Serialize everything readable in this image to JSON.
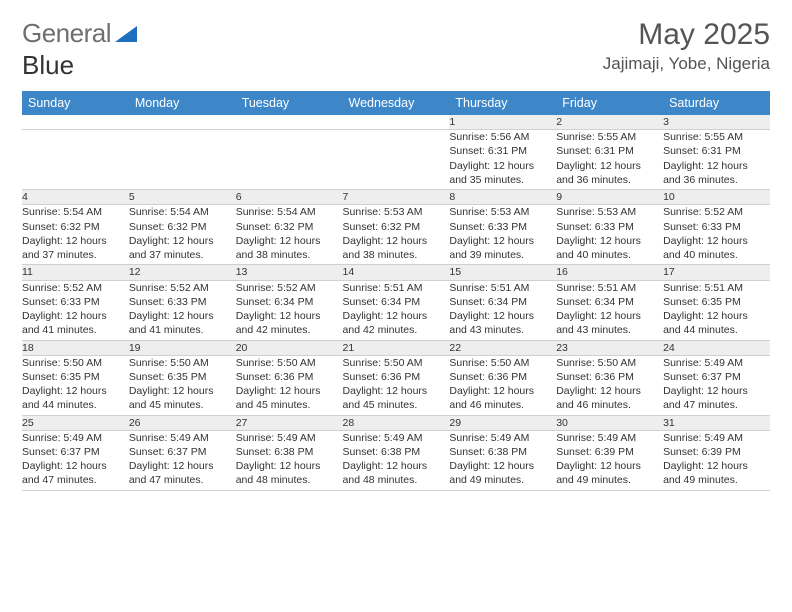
{
  "brand": {
    "part1": "General",
    "part2": "Blue"
  },
  "header": {
    "month_title": "May 2025",
    "location": "Jajimaji, Yobe, Nigeria"
  },
  "colors": {
    "header_bg": "#3d87c9",
    "daynum_bg": "#eeeeee",
    "text": "#333333",
    "brand_gray": "#6f6f6f",
    "brand_blue": "#1f6fbf"
  },
  "weekdays": [
    "Sunday",
    "Monday",
    "Tuesday",
    "Wednesday",
    "Thursday",
    "Friday",
    "Saturday"
  ],
  "weeks": [
    {
      "nums": [
        "",
        "",
        "",
        "",
        "1",
        "2",
        "3"
      ],
      "cells": [
        null,
        null,
        null,
        null,
        {
          "sunrise": "5:56 AM",
          "sunset": "6:31 PM",
          "dl1": "Daylight: 12 hours",
          "dl2": "and 35 minutes."
        },
        {
          "sunrise": "5:55 AM",
          "sunset": "6:31 PM",
          "dl1": "Daylight: 12 hours",
          "dl2": "and 36 minutes."
        },
        {
          "sunrise": "5:55 AM",
          "sunset": "6:31 PM",
          "dl1": "Daylight: 12 hours",
          "dl2": "and 36 minutes."
        }
      ]
    },
    {
      "nums": [
        "4",
        "5",
        "6",
        "7",
        "8",
        "9",
        "10"
      ],
      "cells": [
        {
          "sunrise": "5:54 AM",
          "sunset": "6:32 PM",
          "dl1": "Daylight: 12 hours",
          "dl2": "and 37 minutes."
        },
        {
          "sunrise": "5:54 AM",
          "sunset": "6:32 PM",
          "dl1": "Daylight: 12 hours",
          "dl2": "and 37 minutes."
        },
        {
          "sunrise": "5:54 AM",
          "sunset": "6:32 PM",
          "dl1": "Daylight: 12 hours",
          "dl2": "and 38 minutes."
        },
        {
          "sunrise": "5:53 AM",
          "sunset": "6:32 PM",
          "dl1": "Daylight: 12 hours",
          "dl2": "and 38 minutes."
        },
        {
          "sunrise": "5:53 AM",
          "sunset": "6:33 PM",
          "dl1": "Daylight: 12 hours",
          "dl2": "and 39 minutes."
        },
        {
          "sunrise": "5:53 AM",
          "sunset": "6:33 PM",
          "dl1": "Daylight: 12 hours",
          "dl2": "and 40 minutes."
        },
        {
          "sunrise": "5:52 AM",
          "sunset": "6:33 PM",
          "dl1": "Daylight: 12 hours",
          "dl2": "and 40 minutes."
        }
      ]
    },
    {
      "nums": [
        "11",
        "12",
        "13",
        "14",
        "15",
        "16",
        "17"
      ],
      "cells": [
        {
          "sunrise": "5:52 AM",
          "sunset": "6:33 PM",
          "dl1": "Daylight: 12 hours",
          "dl2": "and 41 minutes."
        },
        {
          "sunrise": "5:52 AM",
          "sunset": "6:33 PM",
          "dl1": "Daylight: 12 hours",
          "dl2": "and 41 minutes."
        },
        {
          "sunrise": "5:52 AM",
          "sunset": "6:34 PM",
          "dl1": "Daylight: 12 hours",
          "dl2": "and 42 minutes."
        },
        {
          "sunrise": "5:51 AM",
          "sunset": "6:34 PM",
          "dl1": "Daylight: 12 hours",
          "dl2": "and 42 minutes."
        },
        {
          "sunrise": "5:51 AM",
          "sunset": "6:34 PM",
          "dl1": "Daylight: 12 hours",
          "dl2": "and 43 minutes."
        },
        {
          "sunrise": "5:51 AM",
          "sunset": "6:34 PM",
          "dl1": "Daylight: 12 hours",
          "dl2": "and 43 minutes."
        },
        {
          "sunrise": "5:51 AM",
          "sunset": "6:35 PM",
          "dl1": "Daylight: 12 hours",
          "dl2": "and 44 minutes."
        }
      ]
    },
    {
      "nums": [
        "18",
        "19",
        "20",
        "21",
        "22",
        "23",
        "24"
      ],
      "cells": [
        {
          "sunrise": "5:50 AM",
          "sunset": "6:35 PM",
          "dl1": "Daylight: 12 hours",
          "dl2": "and 44 minutes."
        },
        {
          "sunrise": "5:50 AM",
          "sunset": "6:35 PM",
          "dl1": "Daylight: 12 hours",
          "dl2": "and 45 minutes."
        },
        {
          "sunrise": "5:50 AM",
          "sunset": "6:36 PM",
          "dl1": "Daylight: 12 hours",
          "dl2": "and 45 minutes."
        },
        {
          "sunrise": "5:50 AM",
          "sunset": "6:36 PM",
          "dl1": "Daylight: 12 hours",
          "dl2": "and 45 minutes."
        },
        {
          "sunrise": "5:50 AM",
          "sunset": "6:36 PM",
          "dl1": "Daylight: 12 hours",
          "dl2": "and 46 minutes."
        },
        {
          "sunrise": "5:50 AM",
          "sunset": "6:36 PM",
          "dl1": "Daylight: 12 hours",
          "dl2": "and 46 minutes."
        },
        {
          "sunrise": "5:49 AM",
          "sunset": "6:37 PM",
          "dl1": "Daylight: 12 hours",
          "dl2": "and 47 minutes."
        }
      ]
    },
    {
      "nums": [
        "25",
        "26",
        "27",
        "28",
        "29",
        "30",
        "31"
      ],
      "cells": [
        {
          "sunrise": "5:49 AM",
          "sunset": "6:37 PM",
          "dl1": "Daylight: 12 hours",
          "dl2": "and 47 minutes."
        },
        {
          "sunrise": "5:49 AM",
          "sunset": "6:37 PM",
          "dl1": "Daylight: 12 hours",
          "dl2": "and 47 minutes."
        },
        {
          "sunrise": "5:49 AM",
          "sunset": "6:38 PM",
          "dl1": "Daylight: 12 hours",
          "dl2": "and 48 minutes."
        },
        {
          "sunrise": "5:49 AM",
          "sunset": "6:38 PM",
          "dl1": "Daylight: 12 hours",
          "dl2": "and 48 minutes."
        },
        {
          "sunrise": "5:49 AM",
          "sunset": "6:38 PM",
          "dl1": "Daylight: 12 hours",
          "dl2": "and 49 minutes."
        },
        {
          "sunrise": "5:49 AM",
          "sunset": "6:39 PM",
          "dl1": "Daylight: 12 hours",
          "dl2": "and 49 minutes."
        },
        {
          "sunrise": "5:49 AM",
          "sunset": "6:39 PM",
          "dl1": "Daylight: 12 hours",
          "dl2": "and 49 minutes."
        }
      ]
    }
  ],
  "labels": {
    "sunrise": "Sunrise:",
    "sunset": "Sunset:"
  }
}
